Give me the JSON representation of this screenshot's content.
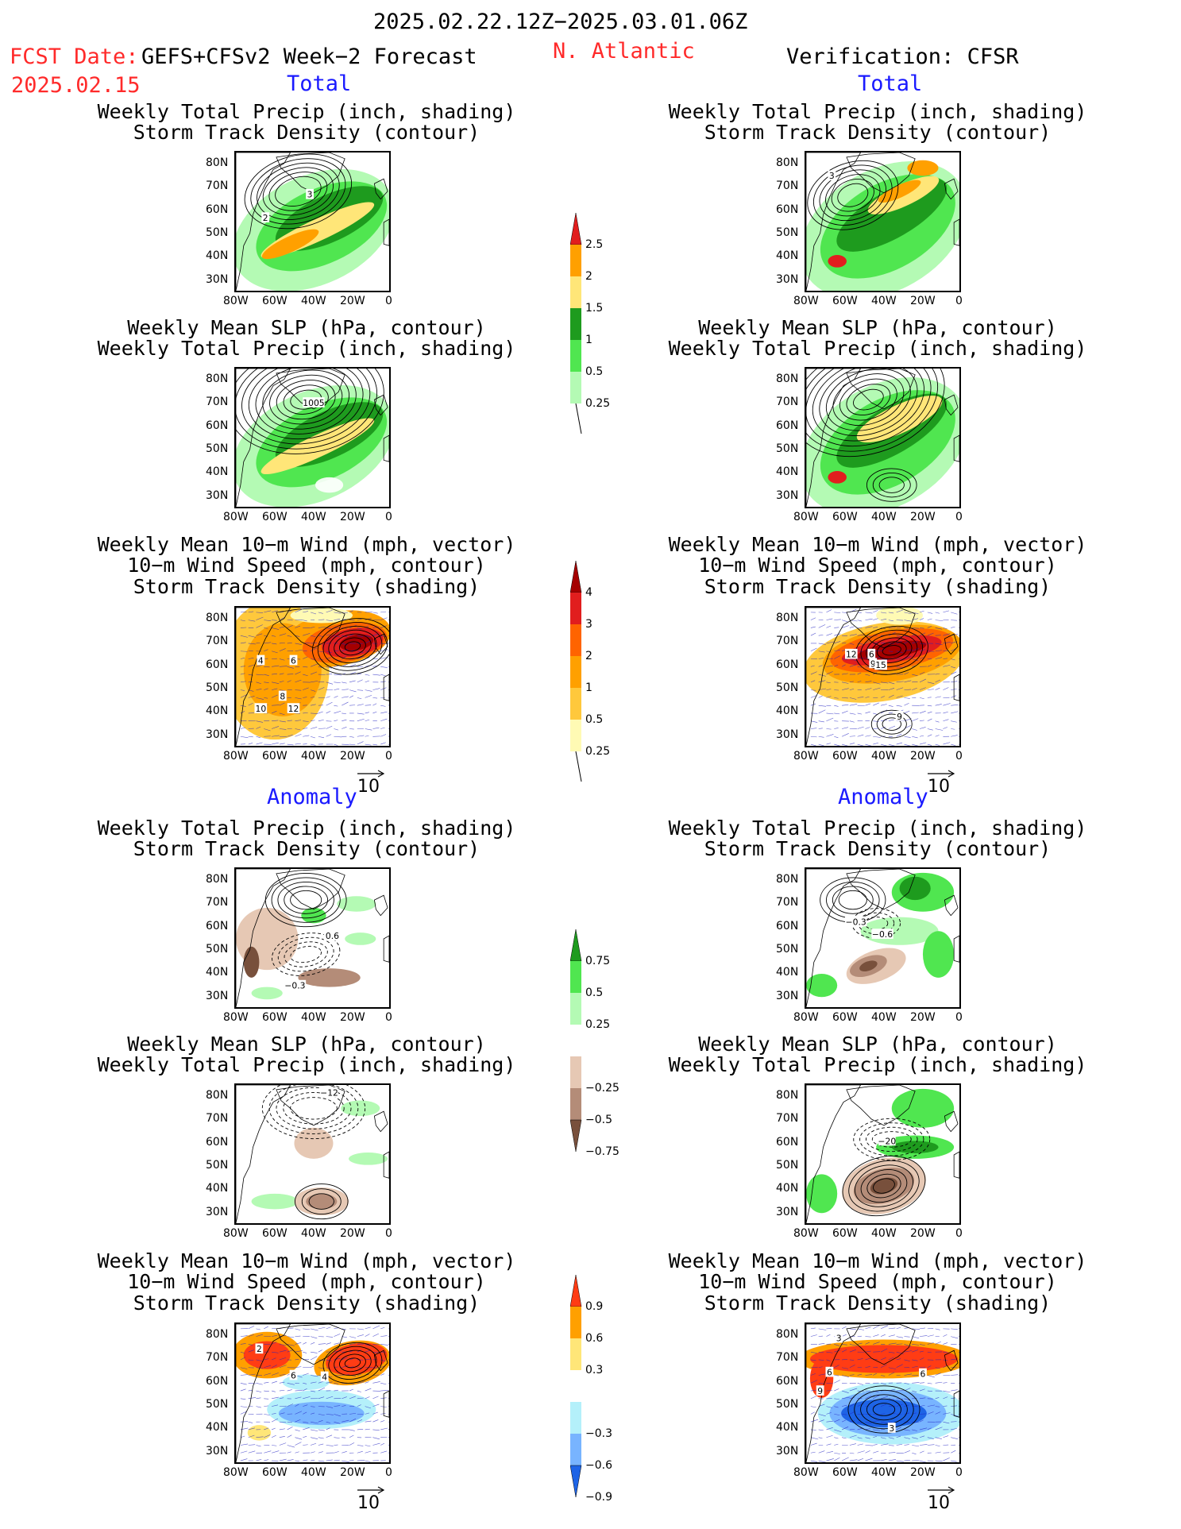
{
  "header": {
    "title": "2025.02.22.12Z−2025.03.01.06Z",
    "fcst_label": "FCST Date:",
    "fcst_model": "GEFS+CFSv2 Week−2 Forecast",
    "fcst_date": "2025.02.15",
    "region": "N. Atlantic",
    "verification": "Verification: CFSR"
  },
  "sections": {
    "total": "Total",
    "anomaly": "Anomaly"
  },
  "titles": {
    "precip_track": "Weekly Total Precip (inch, shading)\nStorm Track Density (contour)",
    "slp_precip": "Weekly Mean SLP (hPa, contour)\nWeekly Total Precip (inch, shading)",
    "wind_track": "Weekly Mean 10−m Wind (mph, vector)\n10−m Wind Speed (mph, contour)\nStorm Track Density (shading)"
  },
  "axes": {
    "lat": [
      "80N",
      "70N",
      "60N",
      "50N",
      "40N",
      "30N"
    ],
    "lon": [
      "80W",
      "60W",
      "40W",
      "20W",
      "0"
    ]
  },
  "vector_ref": "10",
  "colorbars": {
    "precip_total": [
      "2.5",
      "2",
      "1.5",
      "1",
      "0.5",
      "0.25"
    ],
    "track_total": [
      "4",
      "3",
      "2",
      "1",
      "0.5",
      "0.25"
    ],
    "precip_anom": [
      "0.75",
      "0.5",
      "0.25",
      "−0.25",
      "−0.5",
      "−0.75"
    ],
    "track_anom": [
      "0.9",
      "0.6",
      "0.3",
      "−0.3",
      "−0.6",
      "−0.9"
    ]
  },
  "colors": {
    "precip": [
      "#b4fab4",
      "#50e650",
      "#1e9b1e",
      "#ffe678",
      "#ffa000",
      "#e11e1e"
    ],
    "track": [
      "#fffab4",
      "#ffc83c",
      "#ffa000",
      "#ff6400",
      "#e11e1e",
      "#a50000"
    ],
    "anom_precip_pos": [
      "#b4fab4",
      "#50e650",
      "#1e9b1e"
    ],
    "anom_precip_neg": [
      "#e6c8b4",
      "#b48c78",
      "#78503c"
    ],
    "anom_track_pos": [
      "#ffe678",
      "#ffa000",
      "#ff3c14"
    ],
    "anom_track_neg": [
      "#b4f0fa",
      "#78b4ff",
      "#1e64e6"
    ]
  },
  "panel_labels": {
    "f_pt": [
      "3",
      "2"
    ],
    "v_pt": [
      "3"
    ],
    "f_sp": [
      "1005"
    ],
    "f_wt": [
      "4",
      "6",
      "8",
      "10",
      "12"
    ],
    "v_wt": [
      "12",
      "6",
      "9",
      "15",
      "9"
    ],
    "af_pt": [
      "0.6",
      "−0.3"
    ],
    "av_pt": [
      "−0.3",
      "−0.6"
    ],
    "af_sp": [
      "−12"
    ],
    "av_sp": [
      "−20"
    ],
    "af_wt": [
      "2",
      "6",
      "4"
    ],
    "av_wt": [
      "3",
      "6",
      "9",
      "6",
      "3"
    ]
  }
}
